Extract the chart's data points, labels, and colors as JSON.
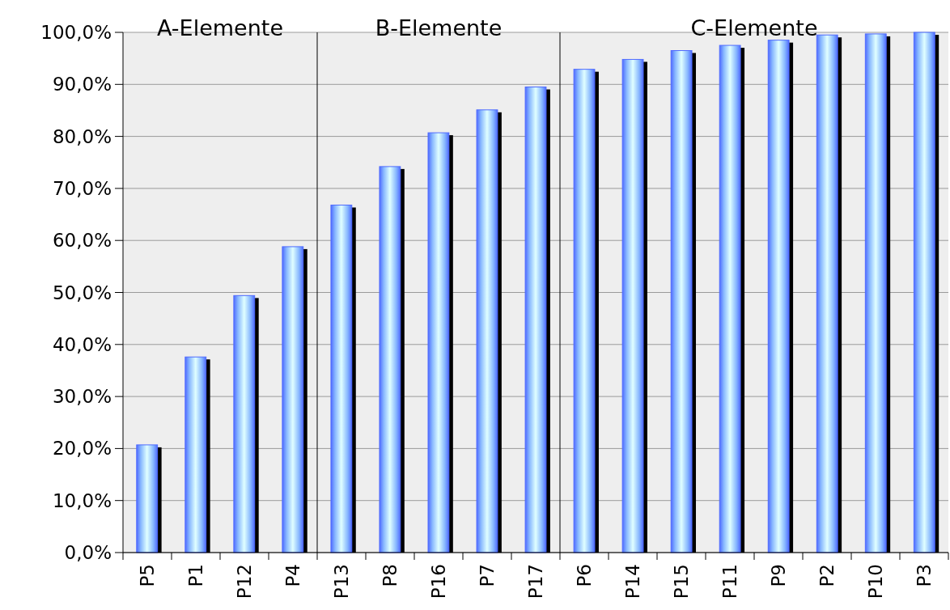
{
  "chart_data": {
    "type": "bar",
    "categories": [
      "P5",
      "P1",
      "P12",
      "P4",
      "P13",
      "P8",
      "P16",
      "P7",
      "P17",
      "P6",
      "P14",
      "P15",
      "P11",
      "P9",
      "P2",
      "P10",
      "P3"
    ],
    "values": [
      20.7,
      37.6,
      49.4,
      58.8,
      66.8,
      74.2,
      80.7,
      85.1,
      89.5,
      92.9,
      94.8,
      96.5,
      97.5,
      98.5,
      99.5,
      99.7,
      100
    ],
    "color": "#4f6bff",
    "ylim": [
      0,
      100
    ],
    "yticks": [
      {
        "value": 0,
        "label": "0,0%"
      },
      {
        "value": 10,
        "label": "10,0%"
      },
      {
        "value": 20,
        "label": "20,0%"
      },
      {
        "value": 30,
        "label": "30,0%"
      },
      {
        "value": 40,
        "label": "40,0%"
      },
      {
        "value": 50,
        "label": "50,0%"
      },
      {
        "value": 60,
        "label": "60,0%"
      },
      {
        "value": 70,
        "label": "70,0%"
      },
      {
        "value": 80,
        "label": "80,0%"
      },
      {
        "value": 90,
        "label": "90,0%"
      },
      {
        "value": 100,
        "label": "100,0%"
      }
    ],
    "grid": "y",
    "annotations": [
      "A-Elemente",
      "B-Elemente",
      "C-Elemente"
    ]
  }
}
